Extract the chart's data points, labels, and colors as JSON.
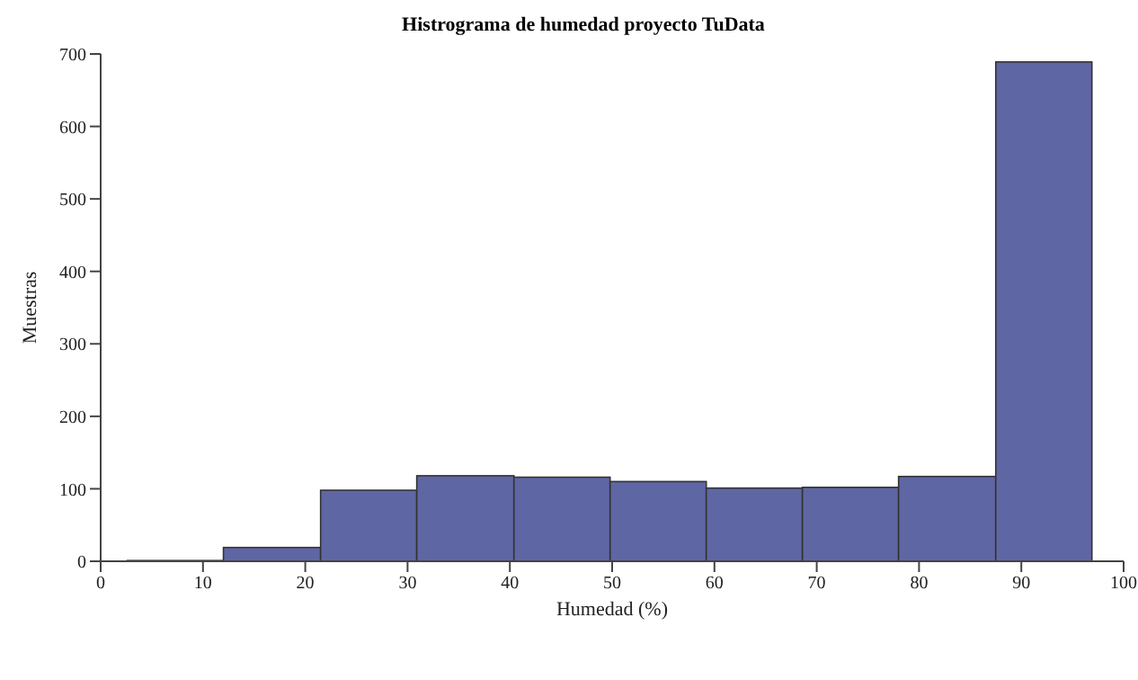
{
  "chart_data": {
    "type": "histogram",
    "title": "Histrograma de humedad proyecto TuData",
    "xlabel": "Humedad (%)",
    "ylabel": "Muestras",
    "bins": [
      2.6,
      12.0,
      21.5,
      30.9,
      40.4,
      49.8,
      59.2,
      68.6,
      78.0,
      87.5,
      96.9
    ],
    "values": [
      1,
      19,
      98,
      118,
      116,
      110,
      101,
      102,
      117,
      689
    ],
    "color": "#5f66a4",
    "xlim": [
      0,
      100
    ],
    "xticks": [
      0,
      10,
      20,
      30,
      40,
      50,
      60,
      70,
      80,
      90,
      100
    ],
    "ylim": [
      0,
      700
    ],
    "yticks": [
      0,
      100,
      200,
      300,
      400,
      500,
      600,
      700
    ],
    "grid": false
  }
}
